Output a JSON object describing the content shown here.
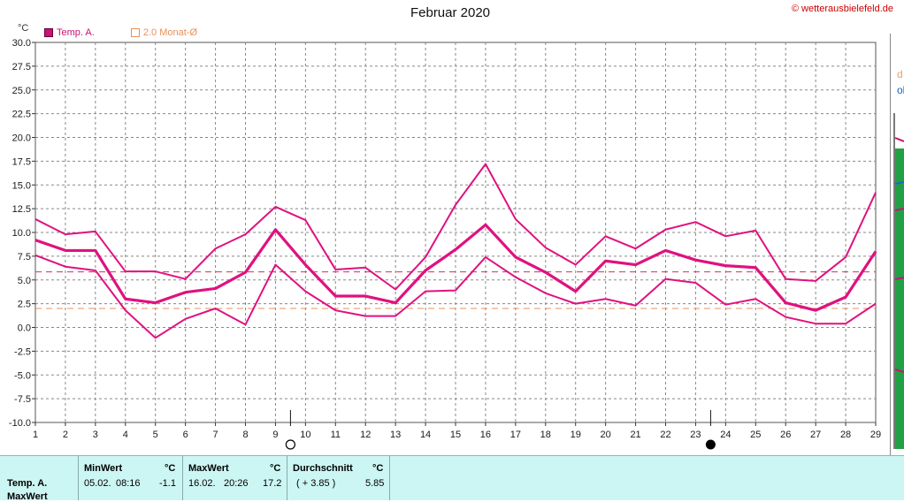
{
  "header": {
    "title": "Februar 2020",
    "credit": "© wetterausbielefeld.de",
    "unit": "°C"
  },
  "legend": [
    {
      "label": "Temp. A.",
      "color": "#cc1177",
      "style": "filled"
    },
    {
      "label": "2.0 Monat-Ø",
      "color": "#e8905a",
      "style": "outline"
    }
  ],
  "colors": {
    "series": "#e0117f",
    "avg_line": "#cc3355",
    "monthly_avg_line": "#e8905a",
    "grid": "#888888",
    "table_bg": "#ccf6f3"
  },
  "moon_phases": [
    {
      "day": 9,
      "phase": "full-moon-icon"
    },
    {
      "day": 23,
      "phase": "new-moon-icon"
    }
  ],
  "chart_data": {
    "type": "line",
    "x": [
      1,
      2,
      3,
      4,
      5,
      6,
      7,
      8,
      9,
      10,
      11,
      12,
      13,
      14,
      15,
      16,
      17,
      18,
      19,
      20,
      21,
      22,
      23,
      24,
      25,
      26,
      27,
      28,
      29
    ],
    "xlabel": "",
    "ylabel": "°C",
    "ylim": [
      -10,
      30
    ],
    "yticks": [
      "30.0",
      "27.5",
      "25.0",
      "22.5",
      "20.0",
      "17.5",
      "15.0",
      "12.5",
      "10.0",
      "7.5",
      "5.0",
      "2.5",
      "0.0",
      "-2.5",
      "-5.0",
      "-7.5",
      "-10.0"
    ],
    "grid": true,
    "legend_position": "top-left",
    "series": [
      {
        "name": "Temp. A.",
        "role": "max",
        "values": [
          11.4,
          9.8,
          10.1,
          5.9,
          5.9,
          5.1,
          8.3,
          9.8,
          12.7,
          11.3,
          6.1,
          6.3,
          4.0,
          7.4,
          12.9,
          17.2,
          11.4,
          8.4,
          6.6,
          9.6,
          8.3,
          10.3,
          11.1,
          9.6,
          10.2,
          5.1,
          4.9,
          7.4,
          14.2
        ]
      },
      {
        "role": "mean",
        "values": [
          9.2,
          8.1,
          8.1,
          3.0,
          2.6,
          3.7,
          4.1,
          5.8,
          10.3,
          6.6,
          3.3,
          3.3,
          2.6,
          6.0,
          8.2,
          10.8,
          7.4,
          5.8,
          3.8,
          7.0,
          6.6,
          8.1,
          7.1,
          6.5,
          6.3,
          2.6,
          1.8,
          3.2,
          8.0
        ]
      },
      {
        "role": "min",
        "values": [
          7.6,
          6.4,
          6.0,
          1.8,
          -1.1,
          0.9,
          2.0,
          0.3,
          6.6,
          3.8,
          1.8,
          1.2,
          1.2,
          3.8,
          3.9,
          7.4,
          5.3,
          3.6,
          2.5,
          3.0,
          2.3,
          5.1,
          4.7,
          2.4,
          3.0,
          1.1,
          0.4,
          0.4,
          2.5
        ]
      }
    ],
    "reference_lines": [
      {
        "label": "",
        "value": 5.85,
        "color": "#cc3355"
      },
      {
        "label": "2.0 Monat-Ø",
        "value": 2.0,
        "color": "#e8905a"
      }
    ]
  },
  "stats_table": {
    "row_label": "Temp. A.",
    "row_label_2": "MaxWert",
    "min": {
      "header": "MinWert",
      "unit": "°C",
      "date": "05.02.",
      "time": "08:16",
      "value": "-1.1"
    },
    "max": {
      "header": "MaxWert",
      "unit": "°C",
      "date": "16.02.",
      "time": "20:26",
      "value": "17.2"
    },
    "avg": {
      "header": "Durchschnitt",
      "unit": "°C",
      "delta": "( + 3.85 )",
      "value": "5.85"
    }
  }
}
